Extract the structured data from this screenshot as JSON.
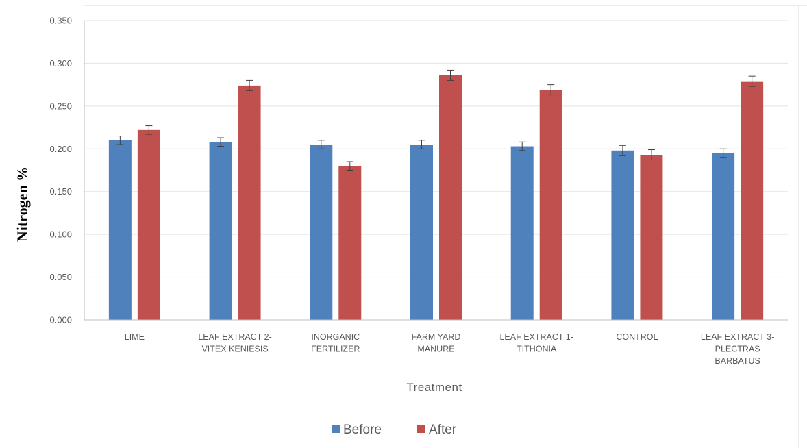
{
  "chart_data": {
    "type": "bar",
    "title": "",
    "xlabel": "Treatment",
    "ylabel": "Nitrogen %",
    "ylim": [
      0,
      0.35
    ],
    "yticks": [
      "0.000",
      "0.050",
      "0.100",
      "0.150",
      "0.200",
      "0.250",
      "0.300",
      "0.350"
    ],
    "grid": true,
    "legend_position": "bottom",
    "categories": [
      [
        "LIME"
      ],
      [
        "LEAF EXTRACT 2-",
        "VITEX KENIESIS"
      ],
      [
        "INORGANIC",
        "FERTILIZER"
      ],
      [
        "FARM YARD",
        "MANURE"
      ],
      [
        "LEAF EXTRACT 1-",
        "TITHONIA"
      ],
      [
        "CONTROL"
      ],
      [
        "LEAF EXTRACT 3-",
        "PLECTRAS",
        "BARBATUS"
      ]
    ],
    "series": [
      {
        "name": "Before",
        "color": "#4F81BD",
        "values": [
          0.21,
          0.208,
          0.205,
          0.205,
          0.203,
          0.198,
          0.195
        ],
        "error": [
          0.005,
          0.005,
          0.005,
          0.005,
          0.005,
          0.006,
          0.005
        ]
      },
      {
        "name": "After",
        "color": "#C0504D",
        "values": [
          0.222,
          0.274,
          0.18,
          0.286,
          0.269,
          0.193,
          0.279
        ],
        "error": [
          0.005,
          0.006,
          0.005,
          0.006,
          0.006,
          0.006,
          0.006
        ]
      }
    ]
  }
}
